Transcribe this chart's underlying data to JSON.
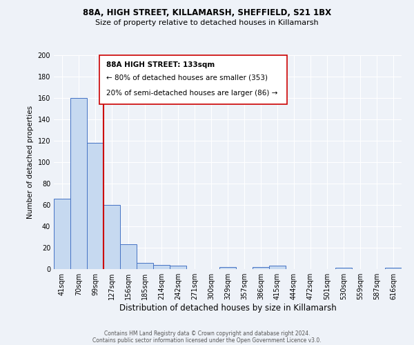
{
  "title1": "88A, HIGH STREET, KILLAMARSH, SHEFFIELD, S21 1BX",
  "title2": "Size of property relative to detached houses in Killamarsh",
  "xlabel": "Distribution of detached houses by size in Killamarsh",
  "ylabel": "Number of detached properties",
  "footer1": "Contains HM Land Registry data © Crown copyright and database right 2024.",
  "footer2": "Contains public sector information licensed under the Open Government Licence v3.0.",
  "bin_labels": [
    "41sqm",
    "70sqm",
    "99sqm",
    "127sqm",
    "156sqm",
    "185sqm",
    "214sqm",
    "242sqm",
    "271sqm",
    "300sqm",
    "329sqm",
    "357sqm",
    "386sqm",
    "415sqm",
    "444sqm",
    "472sqm",
    "501sqm",
    "530sqm",
    "559sqm",
    "587sqm",
    "616sqm"
  ],
  "bar_values": [
    66,
    160,
    118,
    60,
    23,
    6,
    4,
    3,
    0,
    0,
    2,
    0,
    2,
    3,
    0,
    0,
    0,
    1,
    0,
    0,
    1
  ],
  "bar_color": "#c6d9f0",
  "bar_edge_color": "#4472c4",
  "ylim": [
    0,
    200
  ],
  "yticks": [
    0,
    20,
    40,
    60,
    80,
    100,
    120,
    140,
    160,
    180,
    200
  ],
  "vline_color": "#cc0000",
  "annotation_text_line1": "88A HIGH STREET: 133sqm",
  "annotation_text_line2": "← 80% of detached houses are smaller (353)",
  "annotation_text_line3": "20% of semi-detached houses are larger (86) →",
  "background_color": "#eef2f8",
  "grid_color": "#ffffff",
  "annotation_box_color": "#ffffff",
  "annotation_box_edge_color": "#cc0000"
}
